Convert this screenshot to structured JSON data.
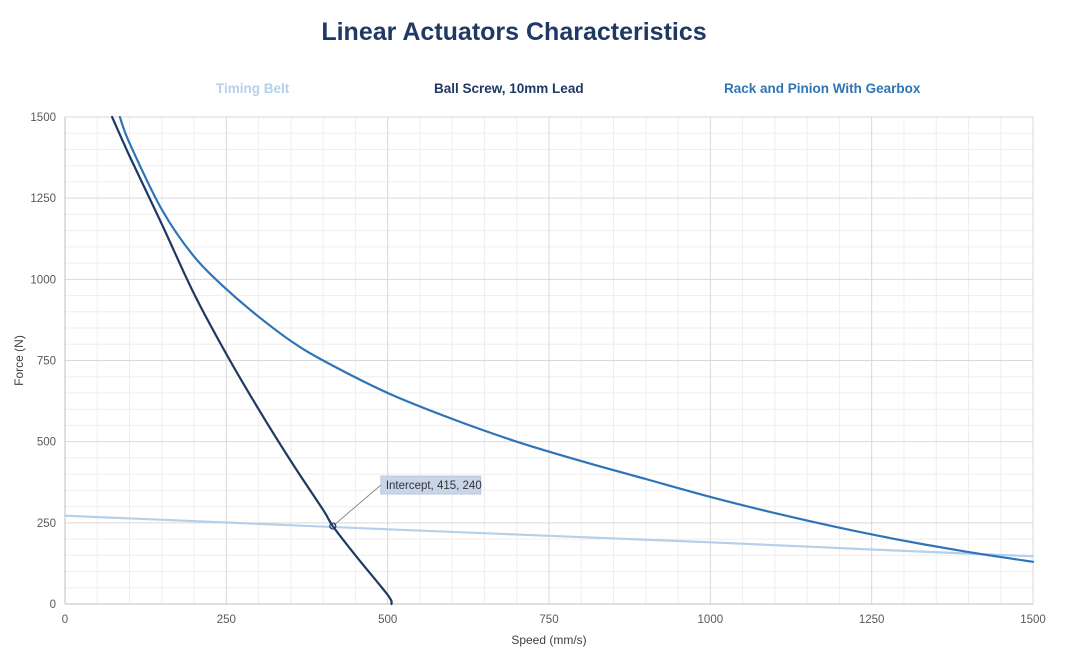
{
  "chart_data": {
    "type": "line",
    "title": "Linear Actuators Characteristics",
    "xlabel": "Speed (mm/s)",
    "ylabel": "Force (N)",
    "xlim": [
      0,
      1500
    ],
    "ylim": [
      0,
      1500
    ],
    "xticks": [
      0,
      250,
      500,
      750,
      1000,
      1250,
      1500
    ],
    "yticks": [
      0,
      250,
      500,
      750,
      1000,
      1250,
      1500
    ],
    "minor_grid_step_x": 50,
    "minor_grid_step_y": 50,
    "legend_position": "top",
    "series": [
      {
        "name": "Timing Belt",
        "color": "#b4d0ea",
        "x": [
          0,
          250,
          500,
          750,
          1000,
          1250,
          1500
        ],
        "y": [
          272,
          251,
          230,
          210,
          190,
          168,
          147
        ]
      },
      {
        "name": "Ball Screw, 10mm Lead",
        "color": "#1f3864",
        "x": [
          73,
          100,
          150,
          200,
          250,
          300,
          350,
          400,
          415,
          450,
          500,
          506
        ],
        "y": [
          1500,
          1380,
          1170,
          955,
          770,
          600,
          440,
          290,
          240,
          150,
          28,
          0
        ]
      },
      {
        "name": "Rack and Pinion With Gearbox",
        "color": "#2e75b6",
        "x": [
          85,
          100,
          150,
          200,
          250,
          300,
          350,
          400,
          500,
          600,
          700,
          800,
          900,
          1000,
          1100,
          1200,
          1300,
          1400,
          1500
        ],
        "y": [
          1500,
          1420,
          1215,
          1070,
          970,
          885,
          810,
          750,
          650,
          570,
          500,
          440,
          385,
          330,
          280,
          235,
          195,
          160,
          130
        ]
      }
    ],
    "annotations": [
      {
        "text": "Intercept, 415, 240",
        "x": 415,
        "y": 240
      }
    ]
  }
}
